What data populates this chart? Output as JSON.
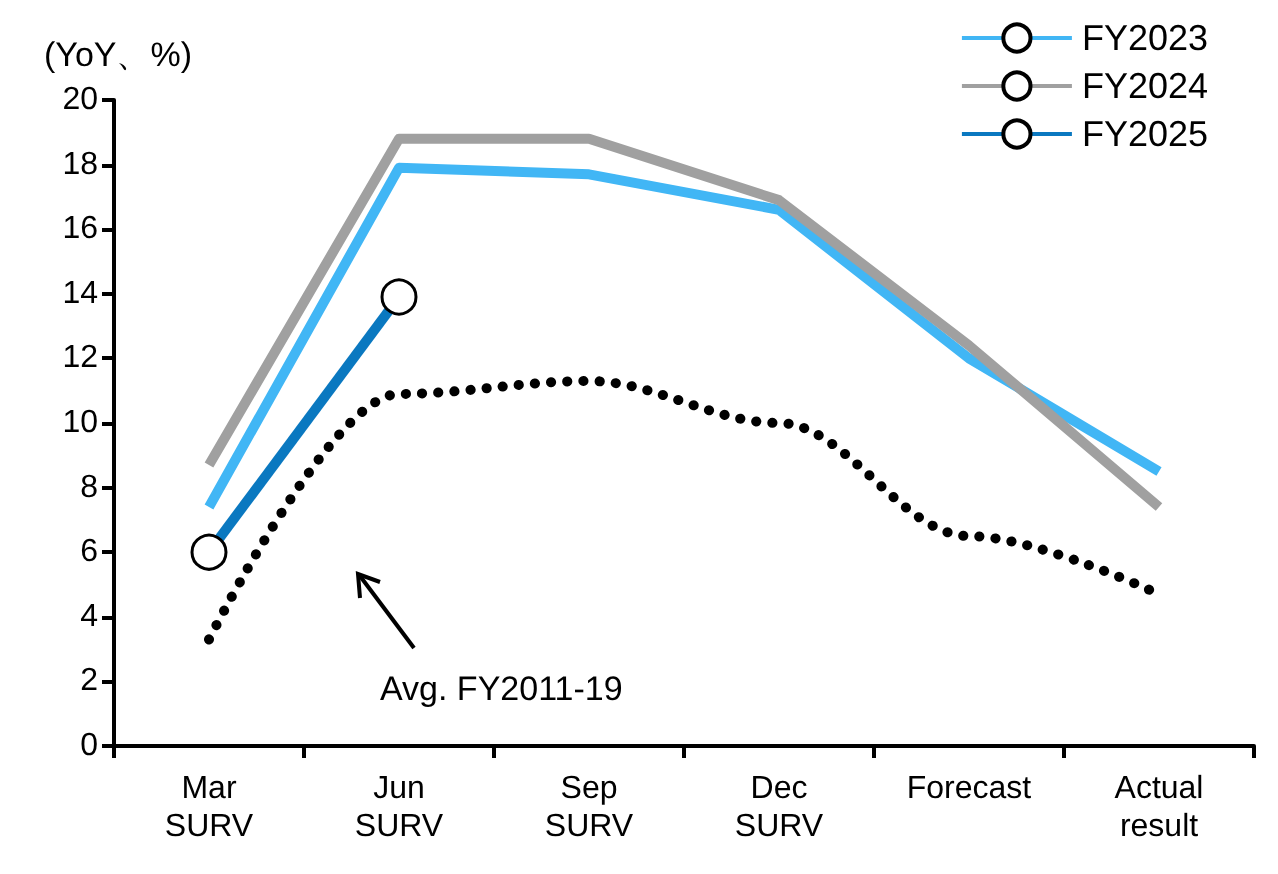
{
  "chart_data": {
    "type": "line",
    "ylabel": "(YoY、%)",
    "categories": [
      "Mar\nSURV",
      "Jun\nSURV",
      "Sep\nSURV",
      "Dec\nSURV",
      "Forecast",
      "Actual\nresult"
    ],
    "series": [
      {
        "name": "FY2023",
        "color": "#41b6f5",
        "values": [
          7.4,
          17.9,
          17.7,
          16.6,
          12.0,
          8.5
        ]
      },
      {
        "name": "FY2024",
        "color": "#a0a0a0",
        "values": [
          8.7,
          18.8,
          18.8,
          16.9,
          12.4,
          7.4
        ]
      },
      {
        "name": "FY2025",
        "color": "#0a78c0",
        "marker": "circle",
        "values": [
          6.0,
          13.9,
          null,
          null,
          null,
          null
        ]
      },
      {
        "color": "#000000",
        "line_style": "dotted",
        "values": [
          3.3,
          10.9,
          11.3,
          10.0,
          6.5,
          4.7
        ]
      }
    ],
    "ylim": [
      0,
      20
    ],
    "yticks": [
      0,
      2,
      4,
      6,
      8,
      10,
      12,
      14,
      16,
      18,
      20
    ],
    "grid": false,
    "legend": "top right",
    "marker": "none",
    "line_style": "solid",
    "annotations": [
      "Avg. FY2011-19"
    ]
  }
}
